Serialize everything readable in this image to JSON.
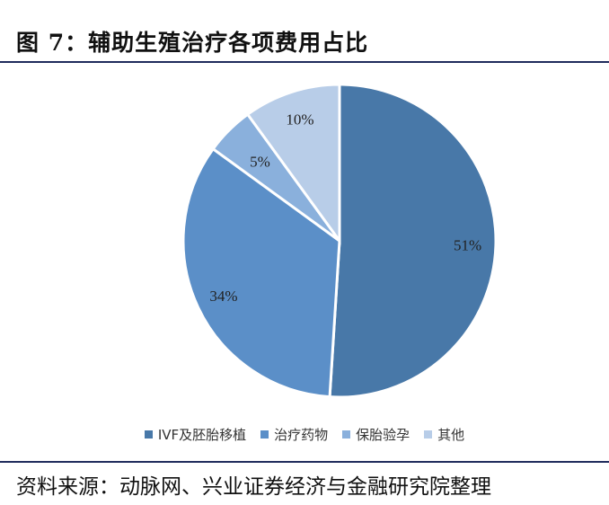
{
  "header": {
    "title": "图 7：辅助生殖治疗各项费用占比"
  },
  "footer": {
    "source": "资料来源：动脉网、兴业证券经济与金融研究院整理"
  },
  "chart_data": {
    "type": "pie",
    "title": "图 7：辅助生殖治疗各项费用占比",
    "categories": [
      "IVF及胚胎移植",
      "治疗药物",
      "保胎验孕",
      "其他"
    ],
    "values": [
      51,
      34,
      5,
      10
    ],
    "labels": [
      "51%",
      "34%",
      "5%",
      "10%"
    ],
    "colors": [
      "#4878A8",
      "#5B8FC8",
      "#8AB0DC",
      "#B8CDE8"
    ],
    "start_angle_deg": 0,
    "direction": "clockwise",
    "legend_position": "bottom"
  }
}
